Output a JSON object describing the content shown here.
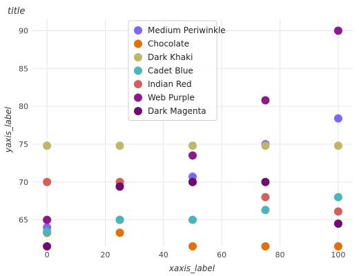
{
  "chart_data": {
    "type": "scatter",
    "title": "title",
    "xlabel": "xaxis_label",
    "ylabel": "yaxis_label",
    "xlim": [
      -5,
      105
    ],
    "ylim": [
      61.5,
      91.5
    ],
    "xticks": [
      0,
      20,
      40,
      60,
      80,
      100
    ],
    "yticks": [
      65,
      70,
      75,
      80,
      85,
      90
    ],
    "grid": true,
    "legend_position": "top-center",
    "x": [
      0,
      25,
      50,
      75,
      100
    ],
    "series": [
      {
        "name": "Medium Periwinkle",
        "color": "#7b68ee",
        "values": [
          64.0,
          65.0,
          70.7,
          75.0,
          78.4
        ]
      },
      {
        "name": "Chocolate",
        "color": "#e1710b",
        "values": [
          63.3,
          63.3,
          61.5,
          61.5,
          61.5
        ]
      },
      {
        "name": "Dark Khaki",
        "color": "#bdb76b",
        "values": [
          74.8,
          74.8,
          74.8,
          74.8,
          74.8
        ]
      },
      {
        "name": "Cadet Blue",
        "color": "#4bb5ba",
        "values": [
          63.4,
          65.0,
          65.0,
          66.3,
          68.0
        ]
      },
      {
        "name": "Indian Red",
        "color": "#d1625b",
        "values": [
          70.0,
          70.0,
          70.0,
          68.0,
          66.1
        ]
      },
      {
        "name": "Web Purple",
        "color": "#8b1a8b",
        "values": [
          65.0,
          69.4,
          73.5,
          80.8,
          90.0
        ]
      },
      {
        "name": "Dark Magenta",
        "color": "#700b70",
        "values": [
          61.5,
          69.4,
          70.0,
          70.0,
          64.5
        ]
      }
    ]
  }
}
